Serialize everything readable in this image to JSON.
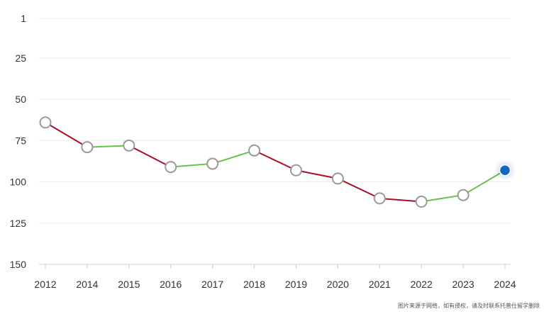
{
  "chart_data": {
    "type": "line",
    "x": [
      "2012",
      "2014",
      "2015",
      "2016",
      "2017",
      "2018",
      "2019",
      "2020",
      "2021",
      "2022",
      "2023",
      "2024"
    ],
    "series": [
      {
        "values": [
          64,
          79,
          78,
          91,
          89,
          81,
          93,
          98,
          110,
          112,
          108,
          93
        ]
      }
    ],
    "y_ticks": [
      1,
      25,
      50,
      75,
      100,
      125,
      150
    ],
    "ylim": [
      1,
      150
    ],
    "y_inverted": true,
    "grid": true,
    "colors": {
      "rise": "#66c24a",
      "fall": "#a8102a",
      "point_stroke": "#9a9a9a",
      "highlight": "#1565c0"
    }
  },
  "watermark": "图片来源于网络，如有侵权，请及时联系托普仕留学删除"
}
